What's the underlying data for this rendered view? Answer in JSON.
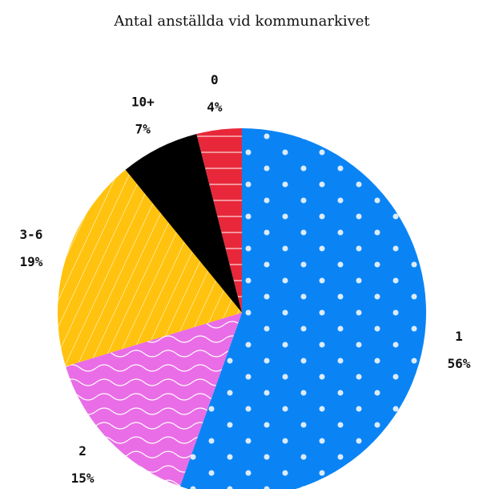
{
  "chart_data": {
    "type": "pie",
    "title": "Antal anställda vid kommunarkivet",
    "categories": [
      "1",
      "2",
      "3-6",
      "10+",
      "0"
    ],
    "values": [
      56,
      15,
      19,
      7,
      4
    ],
    "value_labels": [
      "56%",
      "15%",
      "19%",
      "7%",
      "4%"
    ],
    "colors": [
      "#0a84f5",
      "#e96de6",
      "#ffc20e",
      "#000000",
      "#e8283a"
    ],
    "patterns": [
      "dots",
      "waves",
      "diagonal-lines",
      "none",
      "horizontal-lines"
    ],
    "start_angle": 0,
    "direction": "clockwise"
  }
}
